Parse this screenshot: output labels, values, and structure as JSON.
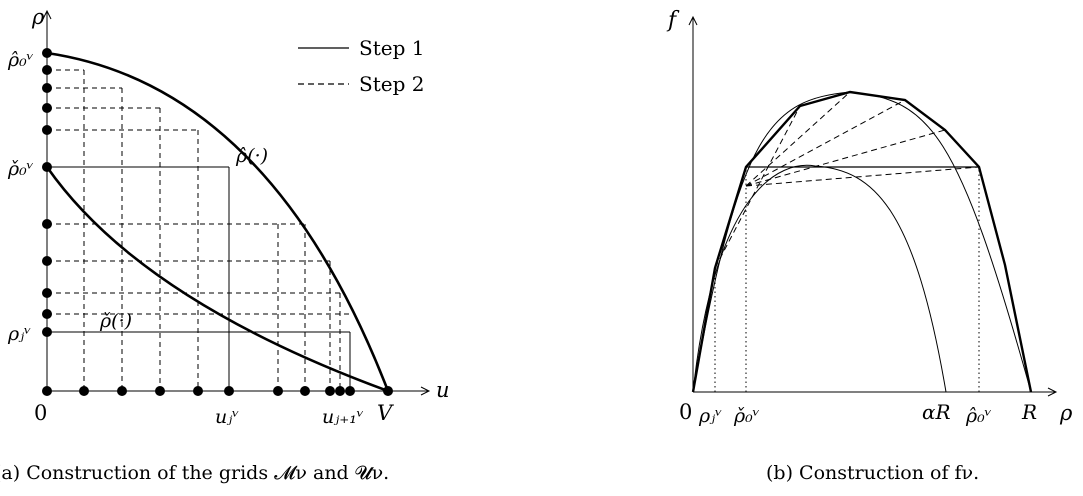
{
  "left": {
    "axis_y": "ρ",
    "axis_x": "u",
    "origin": "0",
    "v_label": "V",
    "rho_hat0": "ρ̂₀ᵛ",
    "rho_check0": "ρ̌₀ᵛ",
    "rho_j": "ρⱼᵛ",
    "u_j": "uⱼᵛ",
    "u_j1": "uⱼ₊₁ᵛ",
    "curve_hat": "ρ̂(·)",
    "curve_check": "ρ̌(·)",
    "legend": [
      {
        "label": "Step 1",
        "style": "solid"
      },
      {
        "label": "Step 2",
        "style": "dashed"
      }
    ],
    "caption": "(a) Construction of the grids 𝓜ν and 𝓤ν."
  },
  "right": {
    "axis_y": "f",
    "axis_x": "ρ",
    "origin": "0",
    "rho_j": "ρⱼᵛ",
    "rho_check0": "ρ̌₀ᵛ",
    "alpha_r": "αR",
    "rho_hat0": "ρ̂₀ᵛ",
    "r_label": "R",
    "caption": "(b) Construction of fν."
  }
}
